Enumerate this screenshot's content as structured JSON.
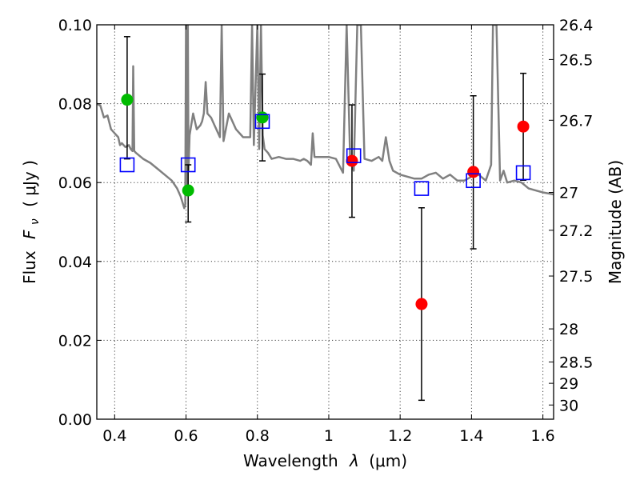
{
  "chart_data": {
    "type": "scatter",
    "xlabel_text": "Wavelength",
    "xlabel_symbol": "λ",
    "xlabel_unit": "(μm)",
    "ylabel_text": "Flux",
    "ylabel_symbol": "F",
    "ylabel_subscript": "ν",
    "ylabel_unit": "( μJy )",
    "y2label": "Magnitude (AB)",
    "xlim": [
      0.35,
      1.63
    ],
    "ylim": [
      0.0,
      0.1
    ],
    "xticks": [
      {
        "value": 0.4,
        "label": "0.4"
      },
      {
        "value": 0.6,
        "label": "0.6"
      },
      {
        "value": 0.8,
        "label": "0.8"
      },
      {
        "value": 1.0,
        "label": "1"
      },
      {
        "value": 1.2,
        "label": "1.2"
      },
      {
        "value": 1.4,
        "label": "1.4"
      },
      {
        "value": 1.6,
        "label": "1.6"
      }
    ],
    "yticks": [
      {
        "value": 0.0,
        "label": "0.00"
      },
      {
        "value": 0.02,
        "label": "0.02"
      },
      {
        "value": 0.04,
        "label": "0.04"
      },
      {
        "value": 0.06,
        "label": "0.06"
      },
      {
        "value": 0.08,
        "label": "0.08"
      },
      {
        "value": 0.1,
        "label": "0.10"
      }
    ],
    "magnitude_ticks": [
      {
        "flux": 0.1,
        "label": "26.4"
      },
      {
        "flux": 0.0912,
        "label": "26.5"
      },
      {
        "flux": 0.0758,
        "label": "26.7"
      },
      {
        "flux": 0.0575,
        "label": "27"
      },
      {
        "flux": 0.0479,
        "label": "27.2"
      },
      {
        "flux": 0.0363,
        "label": "27.5"
      },
      {
        "flux": 0.0229,
        "label": "28"
      },
      {
        "flux": 0.0145,
        "label": "28.5"
      },
      {
        "flux": 0.0091,
        "label": "29"
      },
      {
        "flux": 0.0036,
        "label": "30"
      }
    ],
    "grid": true,
    "colors": {
      "model": "#808080",
      "green": "#00bb00",
      "red": "#ff0000",
      "square": "#0000ff",
      "errorbar": "#000000"
    },
    "model_spectrum": [
      [
        0.35,
        0.08
      ],
      [
        0.36,
        0.0795
      ],
      [
        0.37,
        0.0765
      ],
      [
        0.38,
        0.077
      ],
      [
        0.39,
        0.0735
      ],
      [
        0.4,
        0.0725
      ],
      [
        0.41,
        0.0715
      ],
      [
        0.415,
        0.0695
      ],
      [
        0.42,
        0.07
      ],
      [
        0.43,
        0.069
      ],
      [
        0.44,
        0.0695
      ],
      [
        0.445,
        0.0685
      ],
      [
        0.45,
        0.068
      ],
      [
        0.452,
        0.0895
      ],
      [
        0.455,
        0.068
      ],
      [
        0.46,
        0.0675
      ],
      [
        0.48,
        0.066
      ],
      [
        0.5,
        0.065
      ],
      [
        0.52,
        0.0635
      ],
      [
        0.54,
        0.062
      ],
      [
        0.56,
        0.0605
      ],
      [
        0.575,
        0.0585
      ],
      [
        0.585,
        0.0565
      ],
      [
        0.59,
        0.055
      ],
      [
        0.595,
        0.0535
      ],
      [
        0.598,
        0.0545
      ],
      [
        0.6,
        0.1
      ],
      [
        0.602,
        0.058
      ],
      [
        0.605,
        0.1
      ],
      [
        0.607,
        0.063
      ],
      [
        0.61,
        0.072
      ],
      [
        0.62,
        0.0775
      ],
      [
        0.63,
        0.0735
      ],
      [
        0.64,
        0.0745
      ],
      [
        0.645,
        0.0755
      ],
      [
        0.65,
        0.0775
      ],
      [
        0.655,
        0.0855
      ],
      [
        0.66,
        0.0775
      ],
      [
        0.67,
        0.0765
      ],
      [
        0.68,
        0.0745
      ],
      [
        0.69,
        0.0725
      ],
      [
        0.695,
        0.0715
      ],
      [
        0.7,
        0.1
      ],
      [
        0.705,
        0.0705
      ],
      [
        0.72,
        0.0775
      ],
      [
        0.74,
        0.0735
      ],
      [
        0.76,
        0.0715
      ],
      [
        0.78,
        0.0715
      ],
      [
        0.785,
        0.1
      ],
      [
        0.79,
        0.0695
      ],
      [
        0.8,
        0.1
      ],
      [
        0.805,
        0.0685
      ],
      [
        0.81,
        0.1
      ],
      [
        0.815,
        0.072
      ],
      [
        0.82,
        0.0685
      ],
      [
        0.83,
        0.0675
      ],
      [
        0.84,
        0.066
      ],
      [
        0.86,
        0.0665
      ],
      [
        0.88,
        0.066
      ],
      [
        0.9,
        0.066
      ],
      [
        0.92,
        0.0655
      ],
      [
        0.93,
        0.066
      ],
      [
        0.94,
        0.0655
      ],
      [
        0.95,
        0.0645
      ],
      [
        0.955,
        0.0725
      ],
      [
        0.96,
        0.0665
      ],
      [
        0.98,
        0.0665
      ],
      [
        1.0,
        0.0665
      ],
      [
        1.02,
        0.066
      ],
      [
        1.04,
        0.0625
      ],
      [
        1.05,
        0.1
      ],
      [
        1.06,
        0.066
      ],
      [
        1.07,
        0.063
      ],
      [
        1.08,
        0.1
      ],
      [
        1.09,
        0.1
      ],
      [
        1.1,
        0.066
      ],
      [
        1.12,
        0.0655
      ],
      [
        1.14,
        0.0665
      ],
      [
        1.15,
        0.0655
      ],
      [
        1.16,
        0.0715
      ],
      [
        1.17,
        0.0655
      ],
      [
        1.18,
        0.063
      ],
      [
        1.2,
        0.062
      ],
      [
        1.22,
        0.0615
      ],
      [
        1.24,
        0.061
      ],
      [
        1.26,
        0.061
      ],
      [
        1.28,
        0.062
      ],
      [
        1.3,
        0.0625
      ],
      [
        1.32,
        0.061
      ],
      [
        1.34,
        0.062
      ],
      [
        1.36,
        0.0605
      ],
      [
        1.38,
        0.0605
      ],
      [
        1.4,
        0.0615
      ],
      [
        1.42,
        0.062
      ],
      [
        1.44,
        0.0605
      ],
      [
        1.455,
        0.0645
      ],
      [
        1.46,
        0.1
      ],
      [
        1.47,
        0.1
      ],
      [
        1.48,
        0.0605
      ],
      [
        1.49,
        0.063
      ],
      [
        1.5,
        0.06
      ],
      [
        1.52,
        0.0605
      ],
      [
        1.54,
        0.06
      ],
      [
        1.56,
        0.0585
      ],
      [
        1.58,
        0.058
      ],
      [
        1.6,
        0.0575
      ],
      [
        1.63,
        0.057
      ]
    ],
    "series": [
      {
        "marker": "green-circle",
        "points": [
          {
            "x": 0.435,
            "y": 0.081,
            "yerr_low": 0.066,
            "yerr_high": 0.097
          },
          {
            "x": 0.606,
            "y": 0.058,
            "yerr_low": 0.05,
            "yerr_high": 0.0645
          },
          {
            "x": 0.814,
            "y": 0.0765,
            "yerr_low": 0.0655,
            "yerr_high": 0.0875
          }
        ]
      },
      {
        "marker": "red-circle",
        "points": [
          {
            "x": 1.065,
            "y": 0.0655,
            "yerr_low": 0.0512,
            "yerr_high": 0.0797
          },
          {
            "x": 1.26,
            "y": 0.0292,
            "yerr_low": 0.0048,
            "yerr_high": 0.0536
          },
          {
            "x": 1.405,
            "y": 0.0627,
            "yerr_low": 0.0432,
            "yerr_high": 0.082
          },
          {
            "x": 1.545,
            "y": 0.0742,
            "yerr_low": 0.0606,
            "yerr_high": 0.0877
          }
        ]
      },
      {
        "marker": "blue-square",
        "points": [
          {
            "x": 0.435,
            "y": 0.0645
          },
          {
            "x": 0.606,
            "y": 0.0645
          },
          {
            "x": 0.814,
            "y": 0.0755
          },
          {
            "x": 1.07,
            "y": 0.0668
          },
          {
            "x": 1.26,
            "y": 0.0585
          },
          {
            "x": 1.405,
            "y": 0.0605
          },
          {
            "x": 1.545,
            "y": 0.0625
          }
        ]
      }
    ]
  }
}
